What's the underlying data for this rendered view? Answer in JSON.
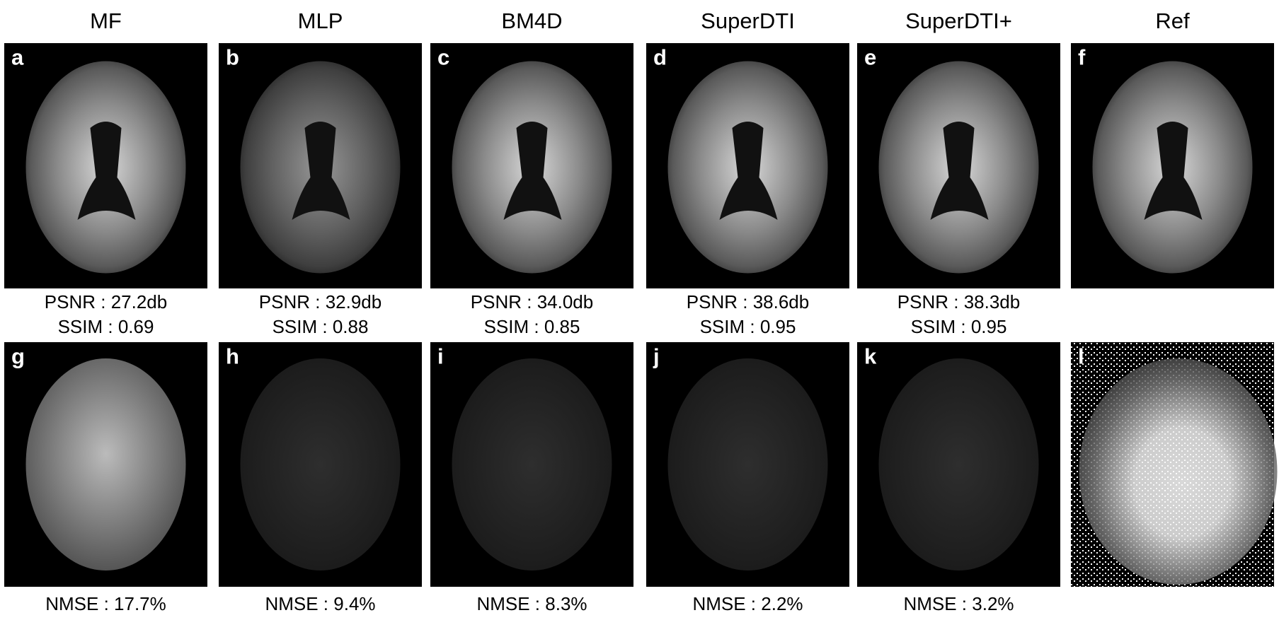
{
  "columns": [
    {
      "title": "MF",
      "top_label": "a",
      "bottom_label": "g",
      "psnr": "PSNR : 27.2db",
      "ssim": "SSIM : 0.69",
      "nmse": "NMSE : 17.7%"
    },
    {
      "title": "MLP",
      "top_label": "b",
      "bottom_label": "h",
      "psnr": "PSNR : 32.9db",
      "ssim": "SSIM : 0.88",
      "nmse": "NMSE : 9.4%"
    },
    {
      "title": "BM4D",
      "top_label": "c",
      "bottom_label": "i",
      "psnr": "PSNR : 34.0db",
      "ssim": "SSIM : 0.85",
      "nmse": "NMSE : 8.3%"
    },
    {
      "title": "SuperDTI",
      "top_label": "d",
      "bottom_label": "j",
      "psnr": "PSNR : 38.6db",
      "ssim": "SSIM : 0.95",
      "nmse": "NMSE : 2.2%"
    },
    {
      "title": "SuperDTI+",
      "top_label": "e",
      "bottom_label": "k",
      "psnr": "PSNR : 38.3db",
      "ssim": "SSIM : 0.95",
      "nmse": "NMSE : 3.2%"
    },
    {
      "title": "Ref",
      "top_label": "f",
      "bottom_label": "l"
    }
  ]
}
